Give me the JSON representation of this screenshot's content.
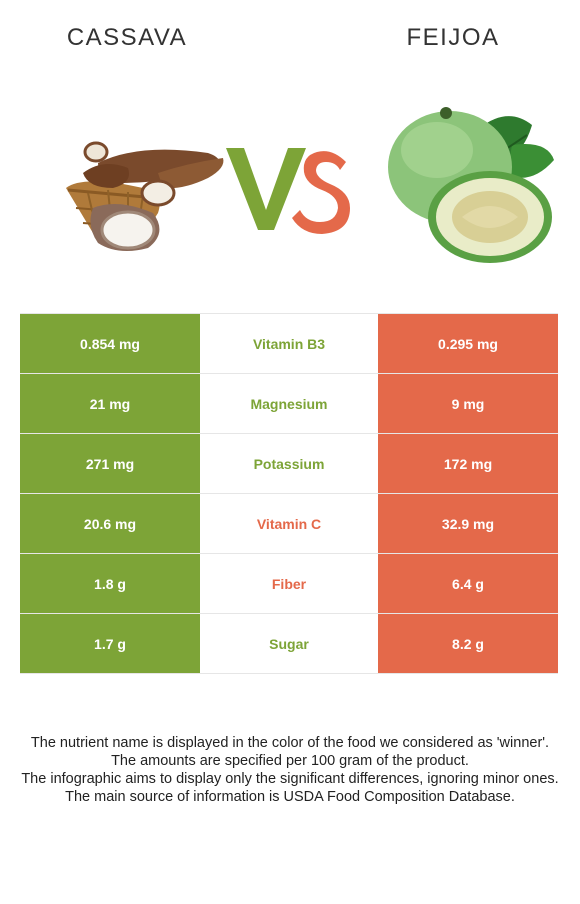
{
  "left_food": {
    "name": "CASSAVA",
    "image_icon": "cassava-basket-image"
  },
  "right_food": {
    "name": "FEIJOA",
    "image_icon": "feijoa-fruit-image"
  },
  "vs": {
    "v_color": "#7da437",
    "s_color": "#e4694a"
  },
  "colors": {
    "left": "#7da437",
    "right": "#e4694a"
  },
  "rows": [
    {
      "nutrient": "Vitamin B3",
      "left": "0.854 mg",
      "right": "0.295 mg",
      "winner": "left"
    },
    {
      "nutrient": "Magnesium",
      "left": "21 mg",
      "right": "9 mg",
      "winner": "left"
    },
    {
      "nutrient": "Potassium",
      "left": "271 mg",
      "right": "172 mg",
      "winner": "left"
    },
    {
      "nutrient": "Vitamin C",
      "left": "20.6 mg",
      "right": "32.9 mg",
      "winner": "right"
    },
    {
      "nutrient": "Fiber",
      "left": "1.8 g",
      "right": "6.4 g",
      "winner": "right"
    },
    {
      "nutrient": "Sugar",
      "left": "1.7 g",
      "right": "8.2 g",
      "winner": "left"
    }
  ],
  "footer": [
    "The nutrient name is displayed in the color of the food we considered as 'winner'.",
    "The amounts are specified per 100 gram of the product.",
    "The infographic aims to display only the significant differences, ignoring minor ones.",
    "The main source of information is USDA Food Composition Database."
  ]
}
